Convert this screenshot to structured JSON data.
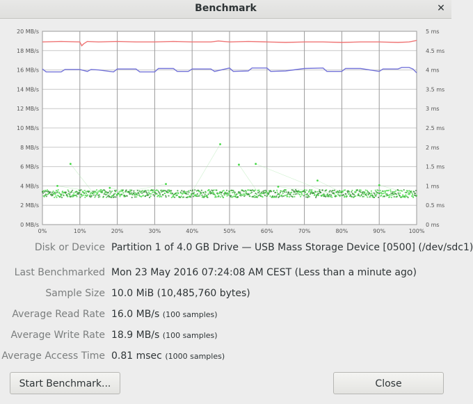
{
  "window": {
    "title": "Benchmark"
  },
  "chart_data": {
    "type": "line",
    "xlabel": "",
    "ylabel": "",
    "x_ticks": [
      "0%",
      "10%",
      "20%",
      "30%",
      "40%",
      "50%",
      "60%",
      "70%",
      "80%",
      "90%",
      "100%"
    ],
    "y_left_ticks": [
      "0 MB/s",
      "2 MB/s",
      "4 MB/s",
      "6 MB/s",
      "8 MB/s",
      "10 MB/s",
      "12 MB/s",
      "14 MB/s",
      "16 MB/s",
      "18 MB/s",
      "20 MB/s"
    ],
    "y_right_ticks": [
      "0 ms",
      "0.5 ms",
      "1 ms",
      "1.5 ms",
      "2 ms",
      "2.5 ms",
      "3 ms",
      "3.5 ms",
      "4 ms",
      "4.5 ms",
      "5 ms"
    ],
    "ylim_left": [
      0,
      20
    ],
    "ylim_right": [
      0,
      5
    ],
    "grid": true,
    "series": [
      {
        "color": "#ef7575",
        "x": [
          0,
          5,
          10,
          10.5,
          11,
          12,
          15,
          20,
          25,
          30,
          35,
          40,
          45,
          47,
          50,
          55,
          60,
          65,
          70,
          75,
          80,
          85,
          90,
          95,
          98,
          100
        ],
        "values": [
          18.9,
          18.95,
          18.9,
          18.5,
          18.7,
          18.95,
          18.9,
          18.95,
          18.9,
          18.9,
          18.95,
          18.9,
          18.9,
          19.0,
          18.9,
          18.95,
          18.9,
          18.85,
          18.9,
          18.9,
          18.85,
          18.9,
          18.9,
          18.85,
          18.9,
          19.05
        ]
      },
      {
        "color": "#7373d9",
        "x": [
          0,
          1,
          5,
          6,
          10,
          12,
          13,
          15,
          19,
          20,
          25,
          26,
          30,
          31,
          35,
          36,
          39,
          40,
          45,
          46,
          50,
          51,
          55,
          56,
          60,
          61,
          65,
          70,
          75,
          76,
          80,
          81,
          85,
          90,
          91,
          95,
          96,
          98,
          99,
          100
        ],
        "values": [
          16.1,
          15.8,
          15.8,
          16.05,
          16.05,
          15.85,
          16.05,
          16.0,
          15.8,
          16.1,
          16.1,
          15.8,
          15.8,
          16.15,
          16.15,
          15.85,
          15.85,
          16.1,
          16.1,
          15.85,
          16.2,
          15.85,
          15.9,
          16.2,
          16.2,
          15.85,
          15.9,
          16.15,
          16.2,
          15.85,
          15.85,
          16.15,
          16.15,
          15.85,
          16.1,
          16.1,
          16.25,
          16.25,
          16.1,
          15.7
        ]
      }
    ],
    "access_time": {
      "color": "#45d845",
      "band_ms": [
        0.7,
        0.9
      ],
      "outliers": [
        {
          "x": 7.5,
          "ms": 1.57
        },
        {
          "x": 47.5,
          "ms": 2.08
        },
        {
          "x": 52.5,
          "ms": 1.55
        },
        {
          "x": 57,
          "ms": 1.57
        },
        {
          "x": 73.5,
          "ms": 1.14
        },
        {
          "x": 18,
          "ms": 0.95
        },
        {
          "x": 33,
          "ms": 1.05
        },
        {
          "x": 63,
          "ms": 0.98
        },
        {
          "x": 90,
          "ms": 1.02
        },
        {
          "x": 4,
          "ms": 1.0
        }
      ]
    }
  },
  "info": {
    "disk_label": "Disk or Device",
    "disk_value": "Partition 1 of 4.0 GB Drive — USB Mass Storage Device [0500] (/dev/sdc1)",
    "last_label": "Last Benchmarked",
    "last_value": "Mon 23 May 2016 07:24:08 AM CEST (Less than a minute ago)",
    "sample_label": "Sample Size",
    "sample_value": "10.0 MiB (10,485,760 bytes)",
    "read_label": "Average Read Rate",
    "read_value": "16.0 MB/s",
    "read_note": "(100 samples)",
    "write_label": "Average Write Rate",
    "write_value": "18.9 MB/s",
    "write_note": "(100 samples)",
    "access_label": "Average Access Time",
    "access_value": "0.81 msec",
    "access_note": "(1000 samples)"
  },
  "buttons": {
    "start": "Start Benchmark...",
    "close": "Close"
  }
}
